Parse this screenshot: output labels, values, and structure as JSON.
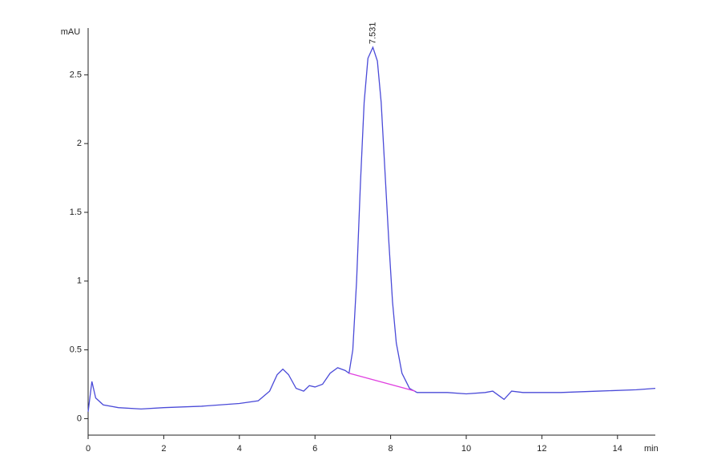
{
  "chart_data": {
    "type": "line",
    "y_label": "mAU",
    "x_label": "min",
    "xlim": [
      0,
      15
    ],
    "ylim": [
      -0.12,
      2.84
    ],
    "xticks": [
      0,
      2,
      4,
      6,
      8,
      10,
      12,
      14
    ],
    "yticks": [
      0,
      0.5,
      1,
      1.5,
      2,
      2.5
    ],
    "series": [
      {
        "color": "#4a4ad8",
        "x": [
          0,
          0.1,
          0.2,
          0.4,
          0.8,
          1.4,
          2,
          3,
          4,
          4.5,
          4.8,
          5.0,
          5.15,
          5.3,
          5.5,
          5.7,
          5.85,
          6.0,
          6.2,
          6.4,
          6.6,
          6.8,
          6.9,
          7.0,
          7.1,
          7.2,
          7.3,
          7.4,
          7.531,
          7.65,
          7.75,
          7.85,
          7.95,
          8.05,
          8.15,
          8.3,
          8.5,
          8.7,
          9.5,
          10,
          10.5,
          10.7,
          10.9,
          11.0,
          11.2,
          11.5,
          12.5,
          13.5,
          14.5,
          15
        ],
        "values": [
          0.05,
          0.27,
          0.15,
          0.1,
          0.08,
          0.07,
          0.08,
          0.09,
          0.11,
          0.13,
          0.2,
          0.32,
          0.36,
          0.32,
          0.22,
          0.2,
          0.24,
          0.23,
          0.25,
          0.33,
          0.37,
          0.35,
          0.33,
          0.5,
          1.0,
          1.7,
          2.3,
          2.62,
          2.7,
          2.6,
          2.3,
          1.8,
          1.3,
          0.85,
          0.55,
          0.33,
          0.22,
          0.19,
          0.19,
          0.18,
          0.19,
          0.2,
          0.16,
          0.14,
          0.2,
          0.19,
          0.19,
          0.2,
          0.21,
          0.22
        ]
      }
    ],
    "baseline": {
      "color": "#e040e0",
      "x": [
        6.9,
        8.65
      ],
      "values": [
        0.33,
        0.2
      ]
    },
    "annotations": [
      {
        "x": 7.531,
        "y": 2.7,
        "text": "7.531"
      }
    ]
  }
}
